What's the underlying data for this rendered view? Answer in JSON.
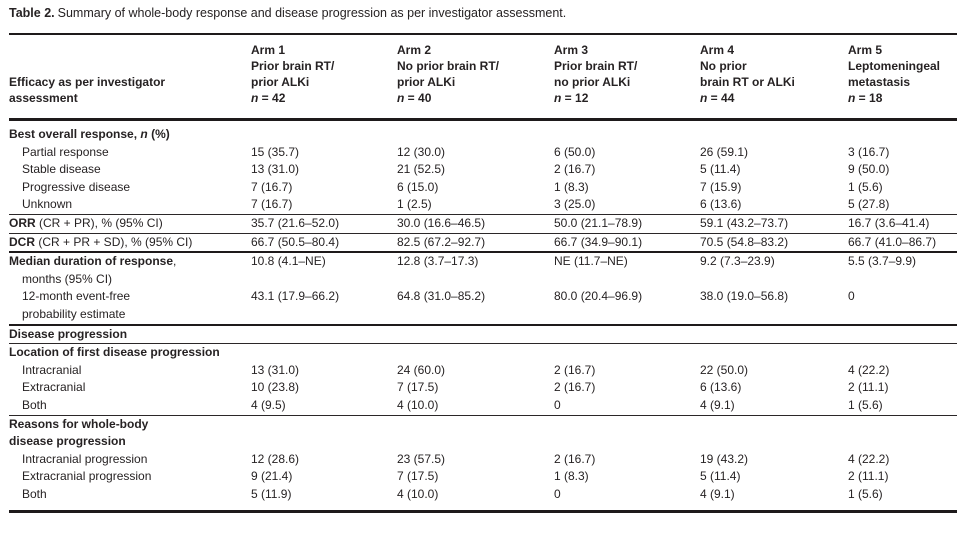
{
  "caption": {
    "label": "Table 2.",
    "text": "Summary of whole-body response and disease progression as per investigator assessment."
  },
  "table": {
    "stub_header_lines": [
      "Efficacy as per investigator",
      "assessment"
    ],
    "n_symbol": "n",
    "arms": [
      {
        "id": "arm-1",
        "lines": [
          "Arm 1",
          "Prior brain RT/",
          "prior ALKi"
        ],
        "n": "42"
      },
      {
        "id": "arm-2",
        "lines": [
          "Arm 2",
          "No prior brain RT/",
          "prior ALKi"
        ],
        "n": "40"
      },
      {
        "id": "arm-3",
        "lines": [
          "Arm 3",
          "Prior brain RT/",
          "no prior ALKi"
        ],
        "n": "12"
      },
      {
        "id": "arm-4",
        "lines": [
          "Arm 4",
          "No prior",
          "brain RT or ALKi"
        ],
        "n": "44"
      },
      {
        "id": "arm-5",
        "lines": [
          "Arm 5",
          "Leptomeningeal",
          "metastasis"
        ],
        "n": "18"
      }
    ],
    "rows": [
      {
        "id": "best-overall-response",
        "lines": [
          {
            "parts": [
              {
                "t": "Best overall response, ",
                "b": true
              },
              {
                "t": "n",
                "b": true,
                "i": true
              },
              {
                "t": " (%)",
                "b": true
              }
            ]
          }
        ],
        "values": null
      },
      {
        "id": "partial-response",
        "lines": [
          {
            "indent": 1,
            "parts": [
              {
                "t": "Partial response"
              }
            ]
          }
        ],
        "values": [
          "15 (35.7)",
          "12 (30.0)",
          "6 (50.0)",
          "26 (59.1)",
          "3 (16.7)"
        ]
      },
      {
        "id": "stable-disease",
        "lines": [
          {
            "indent": 1,
            "parts": [
              {
                "t": "Stable disease"
              }
            ]
          }
        ],
        "values": [
          "13 (31.0)",
          "21 (52.5)",
          "2 (16.7)",
          "5 (11.4)",
          "9 (50.0)"
        ]
      },
      {
        "id": "progressive-disease",
        "lines": [
          {
            "indent": 1,
            "parts": [
              {
                "t": "Progressive disease"
              }
            ]
          }
        ],
        "values": [
          "7 (16.7)",
          "6 (15.0)",
          "1 (8.3)",
          "7 (15.9)",
          "1 (5.6)"
        ]
      },
      {
        "id": "unknown",
        "lines": [
          {
            "indent": 1,
            "parts": [
              {
                "t": "Unknown"
              }
            ]
          }
        ],
        "values": [
          "7 (16.7)",
          "1 (2.5)",
          "3 (25.0)",
          "6 (13.6)",
          "5 (27.8)"
        ],
        "rule_after": "thin"
      },
      {
        "id": "orr",
        "lines": [
          {
            "parts": [
              {
                "t": "ORR",
                "b": true
              },
              {
                "t": " (CR + PR), % (95% CI)"
              }
            ]
          }
        ],
        "values": [
          "35.7 (21.6–52.0)",
          "30.0 (16.6–46.5)",
          "50.0 (21.1–78.9)",
          "59.1 (43.2–73.7)",
          "16.7 (3.6–41.4)"
        ],
        "rule_after": "thin"
      },
      {
        "id": "dcr",
        "lines": [
          {
            "parts": [
              {
                "t": "DCR",
                "b": true
              },
              {
                "t": " (CR + PR + SD), % (95% CI)"
              }
            ]
          }
        ],
        "values": [
          "66.7 (50.5–80.4)",
          "82.5 (67.2–92.7)",
          "66.7 (34.9–90.1)",
          "70.5 (54.8–83.2)",
          "66.7 (41.0–86.7)"
        ],
        "rule_after": "thick"
      },
      {
        "id": "median-duration-of-response",
        "lines": [
          {
            "parts": [
              {
                "t": "Median duration of response",
                "b": true
              },
              {
                "t": ","
              }
            ]
          },
          {
            "indent": 1,
            "parts": [
              {
                "t": "months (95% CI)"
              }
            ]
          }
        ],
        "values": [
          "10.8 (4.1–NE)",
          "12.8 (3.7–17.3)",
          "NE (11.7–NE)",
          "9.2 (7.3–23.9)",
          "5.5 (3.7–9.9)"
        ]
      },
      {
        "id": "event-free-probability",
        "lines": [
          {
            "indent": 1,
            "parts": [
              {
                "t": "12-month event-free"
              }
            ]
          },
          {
            "indent": 1,
            "parts": [
              {
                "t": "probability estimate"
              }
            ]
          }
        ],
        "values": [
          "43.1 (17.9–66.2)",
          "64.8 (31.0–85.2)",
          "80.0 (20.4–96.9)",
          "38.0 (19.0–56.8)",
          "0"
        ],
        "rule_after": "thick"
      },
      {
        "id": "disease-progression-section",
        "lines": [
          {
            "parts": [
              {
                "t": "Disease progression",
                "b": true
              }
            ]
          }
        ],
        "values": null,
        "rule_after": "thin"
      },
      {
        "id": "location-of-first-progression",
        "lines": [
          {
            "parts": [
              {
                "t": "Location of first disease progression",
                "b": true
              }
            ]
          }
        ],
        "values": null
      },
      {
        "id": "location-intracranial",
        "lines": [
          {
            "indent": 1,
            "parts": [
              {
                "t": "Intracranial"
              }
            ]
          }
        ],
        "values": [
          "13 (31.0)",
          "24 (60.0)",
          "2 (16.7)",
          "22 (50.0)",
          "4 (22.2)"
        ]
      },
      {
        "id": "location-extracranial",
        "lines": [
          {
            "indent": 1,
            "parts": [
              {
                "t": "Extracranial"
              }
            ]
          }
        ],
        "values": [
          "10 (23.8)",
          "7 (17.5)",
          "2 (16.7)",
          "6 (13.6)",
          "2 (11.1)"
        ]
      },
      {
        "id": "location-both",
        "lines": [
          {
            "indent": 1,
            "parts": [
              {
                "t": "Both"
              }
            ]
          }
        ],
        "values": [
          "4 (9.5)",
          "4 (10.0)",
          "0",
          "4 (9.1)",
          "1 (5.6)"
        ],
        "rule_after": "thin"
      },
      {
        "id": "reasons-whole-body",
        "lines": [
          {
            "parts": [
              {
                "t": "Reasons for whole-body",
                "b": true
              }
            ]
          },
          {
            "parts": [
              {
                "t": "disease progression",
                "b": true
              }
            ]
          }
        ],
        "values": null
      },
      {
        "id": "reason-intracranial-progression",
        "lines": [
          {
            "indent": 1,
            "parts": [
              {
                "t": "Intracranial progression"
              }
            ]
          }
        ],
        "values": [
          "12 (28.6)",
          "23 (57.5)",
          "2 (16.7)",
          "19 (43.2)",
          "4 (22.2)"
        ]
      },
      {
        "id": "reason-extracranial-progression",
        "lines": [
          {
            "indent": 1,
            "parts": [
              {
                "t": "Extracranial progression"
              }
            ]
          }
        ],
        "values": [
          "9 (21.4)",
          "7 (17.5)",
          "1 (8.3)",
          "5 (11.4)",
          "2 (11.1)"
        ]
      },
      {
        "id": "reason-both",
        "lines": [
          {
            "indent": 1,
            "parts": [
              {
                "t": "Both"
              }
            ]
          }
        ],
        "values": [
          "5 (11.9)",
          "4 (10.0)",
          "0",
          "4 (9.1)",
          "1 (5.6)"
        ]
      }
    ]
  }
}
